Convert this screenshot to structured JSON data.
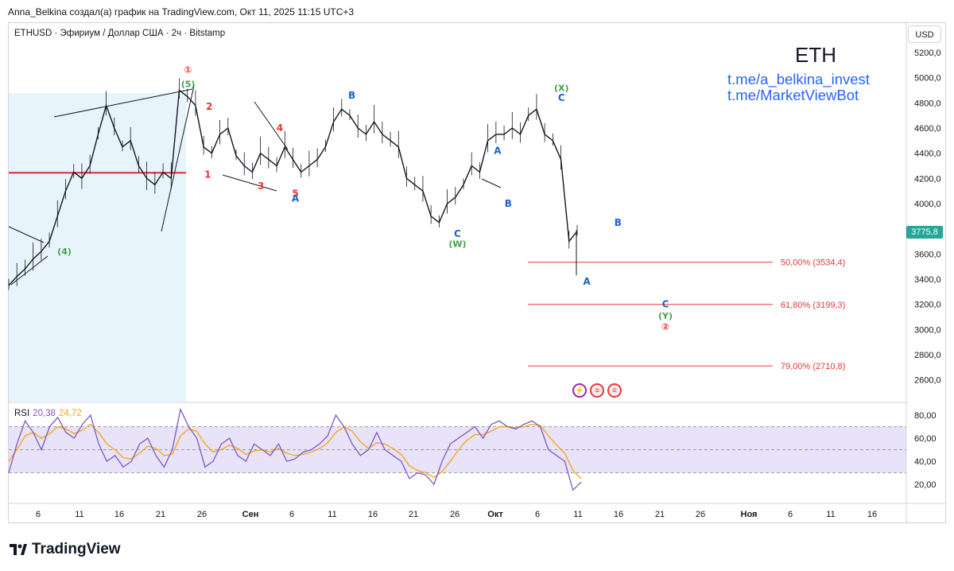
{
  "caption": "Anna_Belkina создал(а) график на TradingView.com, Окт 11, 2025 11:15 UTC+3",
  "symbol_line": "ETHUSD · Эфириум / Доллар США · 2ч · Bitstamp",
  "annotation_title": "ETH",
  "links": [
    "t.me/a_belkina_invest",
    "t.me/MarketViewBot"
  ],
  "currency": "USD",
  "last_price": "3775,8",
  "rsi": {
    "label": "RSI",
    "value": "20,38",
    "ma": "24,72",
    "ticks": [
      "80,00",
      "60,00",
      "40,00",
      "20,00"
    ]
  },
  "brand": "TradingView",
  "icons": {
    "logo": "tradingview-logo-icon",
    "events": [
      "lightning-icon",
      "us-flag-icon",
      "us-flag-icon"
    ]
  },
  "colors": {
    "up": "#26a69a",
    "candle": "#131722",
    "fib": "#e53935",
    "wave_red": "#e53935",
    "wave_green": "#43a047",
    "wave_blue": "#1e63c6",
    "rsi": "#7e57c2",
    "rsi_ma": "#f5a623",
    "band": "#e8e3f8",
    "highlight": "#e8f4fc"
  },
  "chart_data": {
    "type": "line",
    "title": "",
    "xlabel": "",
    "ylabel": "",
    "ylim": [
      2500,
      5300
    ],
    "y_ticks": [
      "5200,0",
      "5000,0",
      "4800,0",
      "4600,0",
      "4400,0",
      "4200,0",
      "4000,0",
      "3800,0",
      "3600,0",
      "3400,0",
      "3200,0",
      "3000,0",
      "2800,0",
      "2600,0"
    ],
    "x_ticks": [
      "6",
      "11",
      "16",
      "21",
      "26",
      "Сен",
      "6",
      "11",
      "16",
      "21",
      "26",
      "Окт",
      "6",
      "11",
      "16",
      "21",
      "26",
      "Ноя",
      "6",
      "11",
      "16"
    ],
    "series": [
      {
        "values": [
          3350,
          3420,
          3480,
          3560,
          3620,
          3700,
          3900,
          4100,
          4250,
          4200,
          4300,
          4550,
          4780,
          4600,
          4450,
          4500,
          4300,
          4200,
          4150,
          4250,
          4200,
          4900,
          4850,
          4780,
          4450,
          4400,
          4550,
          4600,
          4380,
          4300,
          4250,
          4400,
          4350,
          4300,
          4450,
          4350,
          4250,
          4300,
          4350,
          4450,
          4650,
          4750,
          4700,
          4600,
          4550,
          4650,
          4550,
          4500,
          4450,
          4200,
          4150,
          4100,
          3900,
          3850,
          4000,
          4050,
          4150,
          4300,
          4250,
          4500,
          4550,
          4550,
          4600,
          4550,
          4700,
          4750,
          4550,
          4500,
          4350,
          3700,
          3780
        ]
      }
    ],
    "fib_levels": [
      {
        "label": "50,00% (3534,4)",
        "value": 3534.4
      },
      {
        "label": "61,80% (3199,3)",
        "value": 3199.3
      },
      {
        "label": "79,00% (2710,8)",
        "value": 2710.8
      }
    ],
    "support_line": 4245,
    "wave_labels": [
      {
        "text": "①",
        "color": "red",
        "x": 21.9,
        "y": 5060
      },
      {
        "text": "(5)",
        "color": "green",
        "x": 21.9,
        "y": 4950
      },
      {
        "text": "(4)",
        "color": "green",
        "x": 6.8,
        "y": 3620
      },
      {
        "text": "2",
        "color": "red",
        "x": 24.5,
        "y": 4770
      },
      {
        "text": "1",
        "color": "red",
        "x": 24.3,
        "y": 4230
      },
      {
        "text": "3",
        "color": "red",
        "x": 30.8,
        "y": 4140
      },
      {
        "text": "4",
        "color": "red",
        "x": 33.1,
        "y": 4600
      },
      {
        "text": "5",
        "color": "red",
        "x": 35.0,
        "y": 4080
      },
      {
        "text": "A",
        "color": "blue",
        "x": 35.0,
        "y": 4040
      },
      {
        "text": "B",
        "color": "blue",
        "x": 41.9,
        "y": 4860
      },
      {
        "text": "C",
        "color": "blue",
        "x": 54.8,
        "y": 3760
      },
      {
        "text": "(W)",
        "color": "green",
        "x": 54.8,
        "y": 3680
      },
      {
        "text": "A",
        "color": "blue",
        "x": 59.7,
        "y": 4420
      },
      {
        "text": "B",
        "color": "blue",
        "x": 61.0,
        "y": 4000
      },
      {
        "text": "(X)",
        "color": "green",
        "x": 67.5,
        "y": 4920
      },
      {
        "text": "C",
        "color": "blue",
        "x": 67.5,
        "y": 4840
      },
      {
        "text": "B",
        "color": "blue",
        "x": 74.4,
        "y": 3850
      },
      {
        "text": "A",
        "color": "blue",
        "x": 70.6,
        "y": 3380
      },
      {
        "text": "C",
        "color": "blue",
        "x": 80.2,
        "y": 3200
      },
      {
        "text": "(Y)",
        "color": "green",
        "x": 80.2,
        "y": 3110
      },
      {
        "text": "②",
        "color": "red",
        "x": 80.2,
        "y": 3020
      }
    ],
    "rsi_values": [
      30,
      55,
      75,
      65,
      50,
      70,
      78,
      65,
      60,
      72,
      80,
      55,
      40,
      45,
      35,
      40,
      55,
      60,
      45,
      35,
      50,
      85,
      70,
      60,
      35,
      40,
      55,
      60,
      45,
      40,
      55,
      50,
      45,
      55,
      40,
      42,
      48,
      50,
      55,
      62,
      80,
      70,
      55,
      45,
      50,
      65,
      50,
      45,
      40,
      25,
      30,
      28,
      20,
      40,
      55,
      60,
      65,
      70,
      60,
      72,
      75,
      70,
      68,
      72,
      75,
      70,
      50,
      45,
      40,
      15,
      22
    ],
    "rsi_ma_values": [
      40,
      50,
      62,
      65,
      60,
      64,
      70,
      68,
      64,
      67,
      72,
      65,
      55,
      50,
      43,
      42,
      47,
      53,
      51,
      45,
      46,
      62,
      68,
      66,
      55,
      48,
      50,
      54,
      51,
      46,
      49,
      50,
      48,
      51,
      47,
      45,
      46,
      48,
      51,
      56,
      65,
      70,
      66,
      57,
      51,
      56,
      55,
      51,
      46,
      36,
      32,
      30,
      26,
      31,
      40,
      50,
      58,
      63,
      63,
      66,
      70,
      70,
      69,
      70,
      72,
      71,
      62,
      54,
      47,
      32,
      25
    ]
  }
}
